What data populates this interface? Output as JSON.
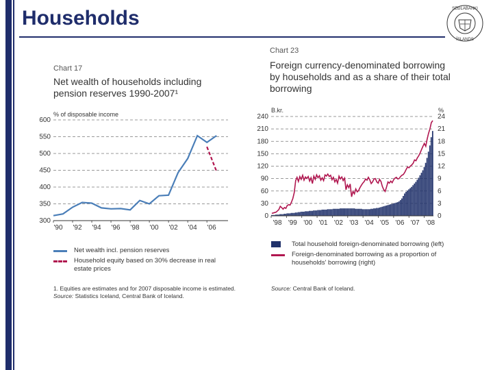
{
  "slide": {
    "title": "Households"
  },
  "chart17": {
    "number": "Chart 17",
    "title_line1": "Net wealth of households including",
    "title_line2": "pension reserves 1990-2007¹",
    "unit": "% of disposable income",
    "legend1": "Net wealth incl. pension reserves",
    "legend2_line1": "Household equity based on 30% decrease in real",
    "legend2_line2": "estate prices",
    "footnote": "1. Equities are estimates and for 2007 disposable income is estimated.",
    "source_label": "Source:",
    "source_text": "Statistics Iceland, Central Bank of Iceland."
  },
  "chart23": {
    "number": "Chart 23",
    "title_line1": "Foreign currency-denominated borrowing",
    "title_line2": "by households and as a share of their total",
    "title_line3": "borrowing",
    "unit_left": "B.kr.",
    "unit_right": "%",
    "legend1": "Total household foreign-denominated borrowing (left)",
    "legend2_line1": "Foreign-denominated borrowing as a proportion of",
    "legend2_line2": "households' borrowing (right)",
    "source_label": "Source:",
    "source_text": "Central Bank of Iceland."
  },
  "chart_data": [
    {
      "type": "line",
      "title": "Net wealth of households including pension reserves 1990-2007¹",
      "ylabel": "% of disposable income",
      "ylim": [
        300,
        600
      ],
      "yticks": [
        "300",
        "350",
        "400",
        "450",
        "500",
        "550",
        "600"
      ],
      "xticks": [
        "'90",
        "'92",
        "'94",
        "'96",
        "'98",
        "'00",
        "'02",
        "'04",
        "'06"
      ],
      "xlim": [
        1990,
        2008.2
      ],
      "grid": "horizontal dashed",
      "colors": {
        "net_wealth": "#4a7eb8",
        "equity": "#b0164f"
      },
      "series": [
        {
          "name": "Net wealth incl. pension reserves",
          "x": [
            1990,
            1991,
            1992,
            1993,
            1994,
            1995,
            1996,
            1997,
            1998,
            1999,
            2000,
            2001,
            2002,
            2003,
            2004,
            2005,
            2006,
            2007
          ],
          "values": [
            315,
            320,
            340,
            354,
            352,
            338,
            335,
            336,
            332,
            360,
            350,
            374,
            376,
            443,
            485,
            553,
            533,
            553
          ]
        },
        {
          "name": "Household equity based on 30% decrease in real estate prices",
          "x": [
            2006,
            2007
          ],
          "values": [
            520,
            447
          ]
        }
      ]
    },
    {
      "type": "bar",
      "title": "Foreign currency-denominated borrowing by households and as a share of their total borrowing",
      "ylabel": "B.kr.",
      "y2label": "%",
      "ylim": [
        0,
        240
      ],
      "y2lim": [
        0,
        24
      ],
      "yticks": [
        "0",
        "30",
        "60",
        "90",
        "120",
        "150",
        "180",
        "210",
        "240"
      ],
      "y2ticks": [
        "0",
        "3",
        "6",
        "9",
        "12",
        "15",
        "18",
        "21",
        "24"
      ],
      "xticks": [
        "'98",
        "'99",
        "'00",
        "'01",
        "'02",
        "'03",
        "'04",
        "'05",
        "'06",
        "'07",
        "'08"
      ],
      "grid": "horizontal dashed",
      "colors": {
        "bars": "#21326b",
        "line": "#b0164f"
      },
      "series": [
        {
          "name": "Total household foreign-denominated borrowing (left)",
          "axis": "left",
          "values": [
            2,
            2,
            2,
            3,
            3,
            3,
            4,
            4,
            4,
            5,
            5,
            6,
            6,
            6,
            7,
            7,
            7,
            8,
            8,
            9,
            9,
            10,
            10,
            10,
            11,
            11,
            11,
            12,
            12,
            12,
            13,
            13,
            13,
            14,
            14,
            14,
            15,
            15,
            15,
            15,
            16,
            16,
            16,
            16,
            17,
            17,
            17,
            17,
            17,
            18,
            18,
            18,
            18,
            18,
            18,
            18,
            18,
            18,
            18,
            18,
            17,
            17,
            17,
            17,
            17,
            16,
            16,
            16,
            16,
            16,
            16,
            17,
            17,
            18,
            18,
            19,
            19,
            20,
            21,
            22,
            23,
            24,
            25,
            26,
            27,
            28,
            29,
            30,
            31,
            32,
            33,
            35,
            38,
            42,
            48,
            54,
            58,
            61,
            64,
            67,
            70,
            74,
            78,
            82,
            87,
            92,
            98,
            104,
            110,
            118,
            128,
            140,
            155,
            170,
            190,
            205
          ]
        },
        {
          "name": "Foreign-denominated borrowing as a proportion of households' borrowing (right)",
          "axis": "right",
          "values": [
            0.6,
            0.7,
            0.8,
            0.9,
            1.2,
            1.5,
            2.3,
            2.0,
            1.6,
            2.0,
            1.8,
            2.5,
            2.7,
            2.6,
            3.3,
            4.2,
            5.6,
            8.5,
            9.3,
            8.3,
            9.5,
            8.8,
            9.8,
            8.6,
            9.4,
            9.0,
            9.5,
            8.4,
            9.2,
            7.8,
            9.6,
            8.8,
            9.9,
            9.2,
            9.7,
            8.6,
            9.2,
            8.5,
            9.9,
            9.6,
            10.1,
            9.5,
            9.8,
            8.7,
            9.3,
            8.2,
            8.8,
            7.9,
            9.6,
            8.9,
            9.4,
            8.5,
            9.1,
            6.3,
            7.5,
            6.8,
            7.7,
            4.6,
            5.9,
            5.3,
            6.5,
            5.8,
            6.1,
            6.8,
            7.4,
            7.9,
            8.3,
            8.9,
            8.6,
            9.3,
            8.7,
            7.8,
            8.2,
            8.9,
            9.0,
            8.2,
            7.9,
            8.8,
            8.3,
            7.1,
            6.3,
            5.9,
            7.0,
            8.2,
            7.9,
            8.4,
            8.0,
            8.7,
            9.1,
            9.3,
            8.9,
            9.0,
            9.5,
            9.8,
            10.0,
            10.5,
            11.2,
            11.8,
            11.6,
            12.0,
            12.3,
            12.7,
            13.5,
            13.3,
            14.0,
            14.5,
            15.2,
            16.0,
            16.8,
            17.5,
            16.8,
            18.5,
            19.9,
            21.0,
            22.5,
            23.0
          ]
        }
      ]
    }
  ]
}
